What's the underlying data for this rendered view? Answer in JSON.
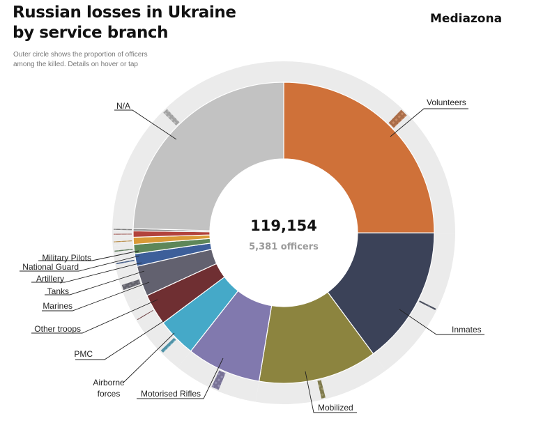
{
  "header": {
    "title_line1": "Russian losses in Ukraine",
    "title_line2": "by service branch",
    "brand": "Mediazona",
    "subtitle_line1": "Outer circle shows the proportion of officers",
    "subtitle_line2": "among the killed. Details on hover or tap"
  },
  "center": {
    "total": "119,154",
    "officers": "5,381 officers"
  },
  "colors": {
    "outer_ring": "#ebebeb",
    "officer_pattern_dark": "#555555",
    "officer_pattern_light": "#ffffff",
    "leader_line": "#222222",
    "segment_border": "#ffffff"
  },
  "chart_data": {
    "type": "pie",
    "subtype": "donut with outer officer-share ring",
    "total": 119154,
    "total_officers": 5381,
    "series": [
      {
        "name": "Volunteers",
        "value": 29800,
        "officer_share": 0.03,
        "color": "#cf7139"
      },
      {
        "name": "Inmates",
        "value": 17700,
        "officer_share": 0.01,
        "color": "#3b4258"
      },
      {
        "name": "Mobilized",
        "value": 15200,
        "officer_share": 0.03,
        "color": "#8c843f"
      },
      {
        "name": "Motorised Rifles",
        "value": 9500,
        "officer_share": 0.09,
        "color": "#8179ae"
      },
      {
        "name": "Airborne forces",
        "value": 5000,
        "officer_share": 0.07,
        "color": "#45a9c8"
      },
      {
        "name": "PMC",
        "value": 4000,
        "officer_share": 0.02,
        "color": "#6f2f32"
      },
      {
        "name": "Other troops",
        "value": 3900,
        "officer_share": 0.15,
        "color": "#62616f"
      },
      {
        "name": "Marines",
        "value": 1600,
        "officer_share": 0.08,
        "color": "#3d5f9a"
      },
      {
        "name": "Tanks",
        "value": 1200,
        "officer_share": 0.1,
        "color": "#5e8759"
      },
      {
        "name": "Artillery",
        "value": 900,
        "officer_share": 0.1,
        "color": "#d99a37"
      },
      {
        "name": "National Guard",
        "value": 800,
        "officer_share": 0.1,
        "color": "#b2433c"
      },
      {
        "name": "Military Pilots",
        "value": 300,
        "officer_share": 0.4,
        "color": "#8a8a8a"
      },
      {
        "name": "N/A",
        "value": 29254,
        "officer_share": 0.02,
        "color": "#c2c2c2"
      }
    ]
  }
}
